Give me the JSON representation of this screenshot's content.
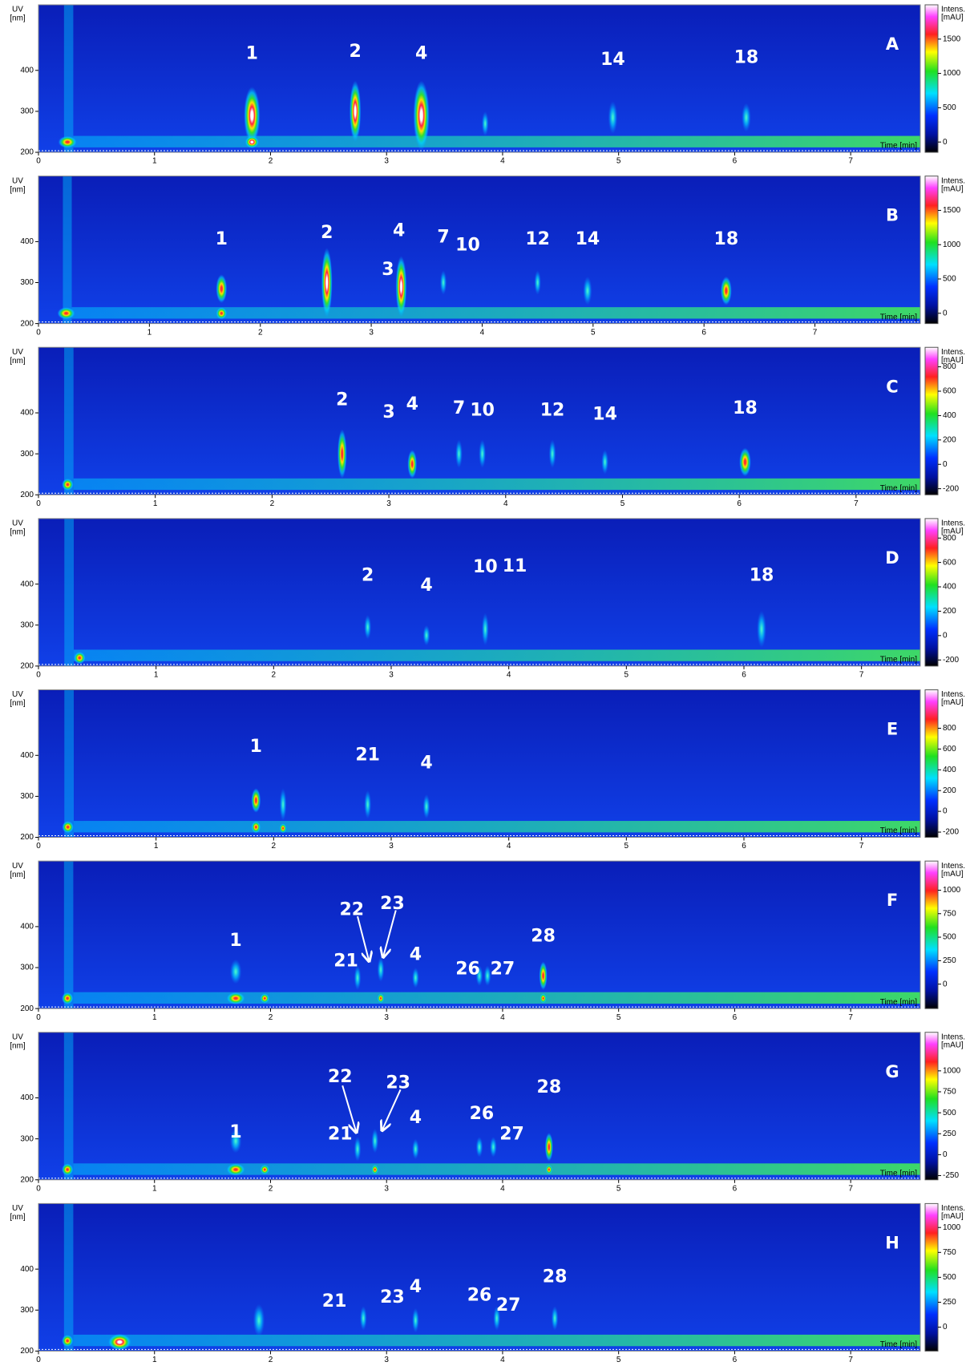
{
  "chart_data": [
    {
      "type": "heatmap",
      "panel": "A",
      "y_label": [
        "UV",
        "[nm]"
      ],
      "x_label": "Time [min]",
      "colorbar_label": [
        "Intens.",
        "[mAU]"
      ],
      "xlim": [
        0,
        7.6
      ],
      "xticks": [
        0,
        1,
        2,
        3,
        4,
        5,
        6,
        7
      ],
      "ylim": [
        200,
        560
      ],
      "yticks": [
        200,
        300,
        400
      ],
      "clim": [
        -150,
        2000
      ],
      "cticks": [
        0,
        500,
        1000,
        1500
      ],
      "peak_labels": [
        "1",
        "2",
        "4",
        "14",
        "18"
      ]
    },
    {
      "type": "heatmap",
      "panel": "B",
      "y_label": [
        "UV",
        "[nm]"
      ],
      "x_label": "Time [min]",
      "colorbar_label": [
        "Intens.",
        "[mAU]"
      ],
      "xlim": [
        0,
        7.95
      ],
      "xticks": [
        0,
        1,
        2,
        3,
        4,
        5,
        6,
        7
      ],
      "ylim": [
        200,
        560
      ],
      "yticks": [
        200,
        300,
        400
      ],
      "clim": [
        -150,
        2000
      ],
      "cticks": [
        0,
        500,
        1000,
        1500
      ],
      "peak_labels": [
        "1",
        "2",
        "3",
        "4",
        "7",
        "10",
        "12",
        "14",
        "18"
      ]
    },
    {
      "type": "heatmap",
      "panel": "C",
      "y_label": [
        "UV",
        "[nm]"
      ],
      "x_label": "Time [min]",
      "colorbar_label": [
        "Intens.",
        "[mAU]"
      ],
      "xlim": [
        0,
        7.55
      ],
      "xticks": [
        0,
        1,
        2,
        3,
        4,
        5,
        6,
        7
      ],
      "ylim": [
        200,
        560
      ],
      "yticks": [
        200,
        300,
        400
      ],
      "clim": [
        -250,
        960
      ],
      "cticks": [
        -200,
        0,
        200,
        400,
        600,
        800
      ],
      "peak_labels": [
        "2",
        "3",
        "4",
        "7",
        "10",
        "12",
        "14",
        "18"
      ]
    },
    {
      "type": "heatmap",
      "panel": "D",
      "y_label": [
        "UV",
        "[nm]"
      ],
      "x_label": "Time [min]",
      "colorbar_label": [
        "Intens.",
        "[mAU]"
      ],
      "xlim": [
        0,
        7.5
      ],
      "xticks": [
        0,
        1,
        2,
        3,
        4,
        5,
        6,
        7
      ],
      "ylim": [
        200,
        560
      ],
      "yticks": [
        200,
        300,
        400
      ],
      "clim": [
        -250,
        960
      ],
      "cticks": [
        -200,
        0,
        200,
        400,
        600,
        800
      ],
      "peak_labels": [
        "2",
        "4",
        "10",
        "11",
        "18"
      ]
    },
    {
      "type": "heatmap",
      "panel": "E",
      "y_label": [
        "UV",
        "[nm]"
      ],
      "x_label": "Time [min]",
      "colorbar_label": [
        "Intens.",
        "[mAU]"
      ],
      "xlim": [
        0,
        7.5
      ],
      "xticks": [
        0,
        1,
        2,
        3,
        4,
        5,
        6,
        7
      ],
      "ylim": [
        200,
        560
      ],
      "yticks": [
        200,
        300,
        400
      ],
      "clim": [
        -250,
        1170
      ],
      "cticks": [
        -200,
        0,
        200,
        400,
        600,
        800
      ],
      "peak_labels": [
        "1",
        "21",
        "4"
      ]
    },
    {
      "type": "heatmap",
      "panel": "F",
      "y_label": [
        "UV",
        "[nm]"
      ],
      "x_label": "Time [min]",
      "colorbar_label": [
        "Intens.",
        "[mAU]"
      ],
      "xlim": [
        0,
        7.6
      ],
      "xticks": [
        0,
        1,
        2,
        3,
        4,
        5,
        6,
        7
      ],
      "ylim": [
        200,
        560
      ],
      "yticks": [
        200,
        300,
        400
      ],
      "clim": [
        -260,
        1310
      ],
      "cticks": [
        0,
        250,
        500,
        750,
        1000
      ],
      "peak_labels": [
        "1",
        "21",
        "22",
        "23",
        "4",
        "26",
        "27",
        "28"
      ]
    },
    {
      "type": "heatmap",
      "panel": "G",
      "y_label": [
        "UV",
        "[nm]"
      ],
      "x_label": "Time [min]",
      "colorbar_label": [
        "Intens.",
        "[mAU]"
      ],
      "xlim": [
        0,
        7.6
      ],
      "xticks": [
        0,
        1,
        2,
        3,
        4,
        5,
        6,
        7
      ],
      "ylim": [
        200,
        560
      ],
      "yticks": [
        200,
        300,
        400
      ],
      "clim": [
        -300,
        1460
      ],
      "cticks": [
        -250,
        0,
        250,
        500,
        750,
        1000
      ],
      "peak_labels": [
        "1",
        "21",
        "22",
        "23",
        "4",
        "26",
        "27",
        "28"
      ]
    },
    {
      "type": "heatmap",
      "panel": "H",
      "y_label": [
        "UV",
        "[nm]"
      ],
      "x_label": "Time [min]",
      "colorbar_label": [
        "Intens.",
        "[mAU]"
      ],
      "xlim": [
        0,
        7.6
      ],
      "xticks": [
        0,
        1,
        2,
        3,
        4,
        5,
        6,
        7
      ],
      "ylim": [
        200,
        560
      ],
      "yticks": [
        200,
        300,
        400
      ],
      "clim": [
        -240,
        1240
      ],
      "cticks": [
        0,
        250,
        500,
        750,
        1000
      ],
      "peak_labels": [
        "21",
        "23",
        "4",
        "26",
        "27",
        "28"
      ]
    }
  ]
}
